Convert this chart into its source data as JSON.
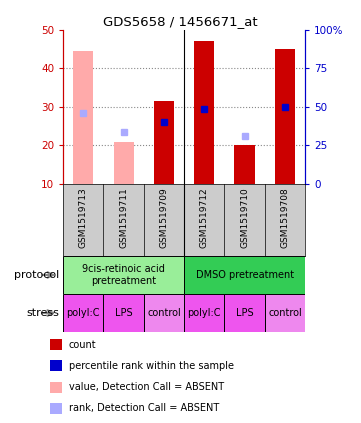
{
  "title": "GDS5658 / 1456671_at",
  "samples": [
    "GSM1519713",
    "GSM1519711",
    "GSM1519709",
    "GSM1519712",
    "GSM1519710",
    "GSM1519708"
  ],
  "count_values": [
    null,
    null,
    31.5,
    47,
    20,
    45
  ],
  "count_color": "#cc0000",
  "absent_value_bars": [
    44.5,
    21,
    null,
    null,
    null,
    null
  ],
  "absent_value_color": "#ffaaaa",
  "rank_present_values": [
    null,
    null,
    26,
    29.5,
    null,
    30
  ],
  "rank_present_color": "#0000cc",
  "rank_absent_values": [
    28.5,
    23.5,
    null,
    null,
    22.5,
    null
  ],
  "rank_absent_color": "#aaaaff",
  "ylim_left": [
    10,
    50
  ],
  "ylim_right": [
    0,
    100
  ],
  "yticks_left": [
    10,
    20,
    30,
    40,
    50
  ],
  "yticks_right": [
    0,
    25,
    50,
    75,
    100
  ],
  "ytick_labels_right": [
    "0",
    "25",
    "50",
    "75",
    "100%"
  ],
  "left_axis_color": "#cc0000",
  "right_axis_color": "#0000cc",
  "protocol_groups": [
    {
      "label": "9cis-retinoic acid\npretreatment",
      "start": 0,
      "end": 2,
      "color": "#99ee99"
    },
    {
      "label": "DMSO pretreatment",
      "start": 3,
      "end": 5,
      "color": "#33cc55"
    }
  ],
  "stress_groups": [
    {
      "label": "polyI:C",
      "start": 0,
      "end": 0,
      "color": "#ee55ee"
    },
    {
      "label": "LPS",
      "start": 1,
      "end": 1,
      "color": "#ee55ee"
    },
    {
      "label": "control",
      "start": 2,
      "end": 2,
      "color": "#ee88ee"
    },
    {
      "label": "polyI:C",
      "start": 3,
      "end": 3,
      "color": "#ee55ee"
    },
    {
      "label": "LPS",
      "start": 4,
      "end": 4,
      "color": "#ee55ee"
    },
    {
      "label": "control",
      "start": 5,
      "end": 5,
      "color": "#ee88ee"
    }
  ],
  "legend_items": [
    {
      "color": "#cc0000",
      "label": "count"
    },
    {
      "color": "#0000cc",
      "label": "percentile rank within the sample"
    },
    {
      "color": "#ffaaaa",
      "label": "value, Detection Call = ABSENT"
    },
    {
      "color": "#aaaaff",
      "label": "rank, Detection Call = ABSENT"
    }
  ],
  "bar_width": 0.5,
  "sample_area_color": "#cccccc",
  "grid_color": "#888888",
  "background_color": "#ffffff",
  "n_samples": 6
}
